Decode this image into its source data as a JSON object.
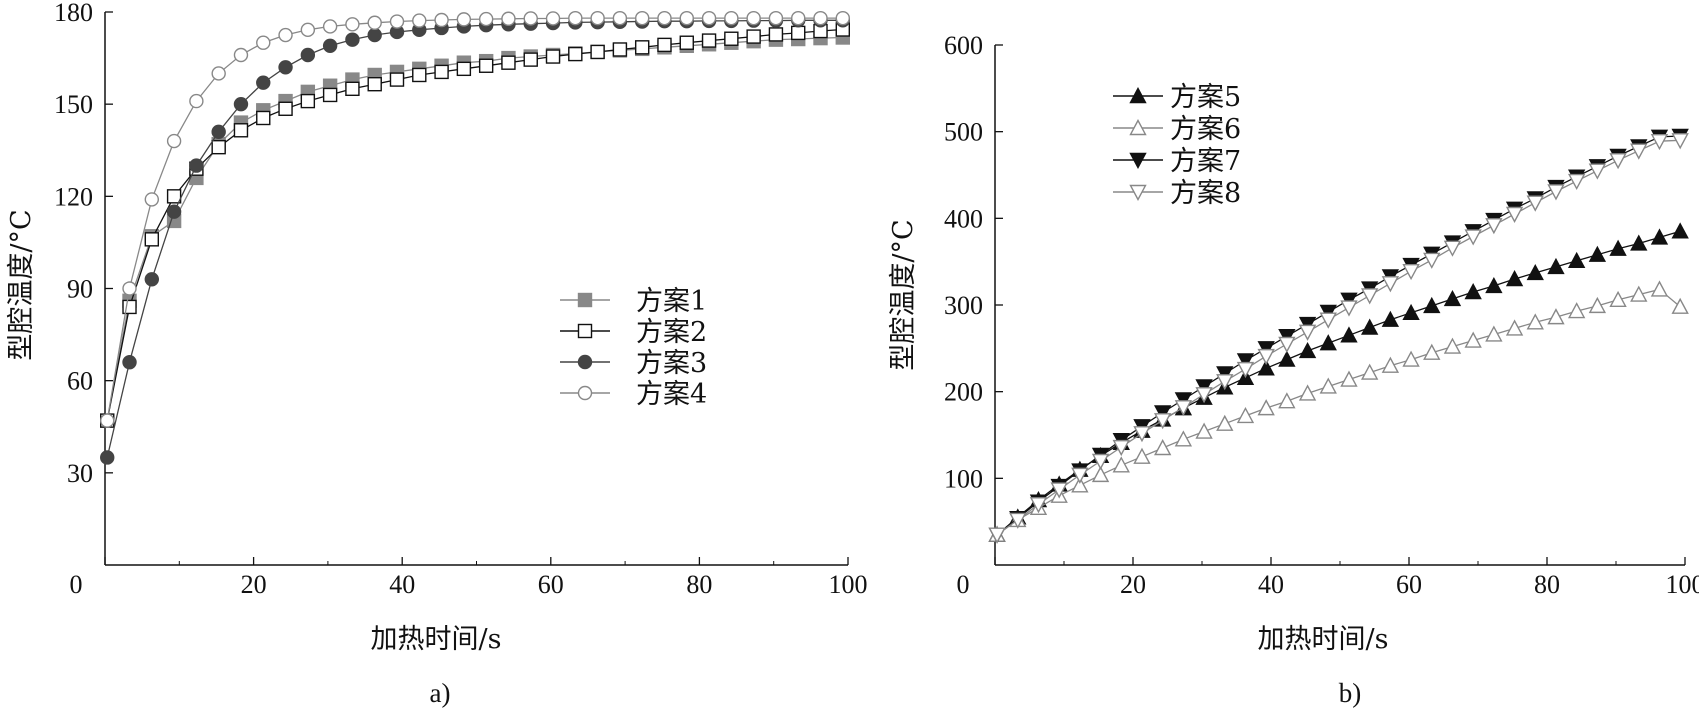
{
  "chart_data": [
    {
      "type": "line",
      "panel_label": "a)",
      "xlabel": "加热时间/s",
      "ylabel": "型腔温度/°C",
      "xlim": [
        0,
        100
      ],
      "ylim": [
        0,
        180
      ],
      "x_ticks": [
        "0",
        "20",
        "40",
        "60",
        "80",
        "100"
      ],
      "y_ticks": [
        "30",
        "60",
        "90",
        "120",
        "150",
        "180"
      ],
      "grid": false,
      "legend_position": "center-right",
      "x": [
        0.3,
        3.3,
        6.3,
        9.3,
        12.3,
        15.3,
        18.3,
        21.3,
        24.3,
        27.3,
        30.3,
        33.3,
        36.3,
        39.3,
        42.3,
        45.3,
        48.3,
        51.3,
        54.3,
        57.3,
        60.3,
        63.3,
        66.3,
        69.3,
        72.3,
        75.3,
        78.3,
        81.3,
        84.3,
        87.3,
        90.3,
        93.3,
        96.3,
        99.3
      ],
      "series": [
        {
          "name": "方案1",
          "marker": "square-filled",
          "color": "#888888",
          "values": [
            47,
            86,
            107,
            112,
            126,
            137,
            144,
            148,
            151,
            154,
            156,
            158,
            159.5,
            160.5,
            161.5,
            162.5,
            163.5,
            164,
            165,
            165.5,
            166,
            166.5,
            167,
            167.5,
            168,
            168.5,
            169,
            169.5,
            170,
            170.5,
            171,
            171.2,
            171.5,
            171.7
          ]
        },
        {
          "name": "方案2",
          "marker": "square-open",
          "color": "#111111",
          "values": [
            47,
            84,
            106,
            120,
            129,
            136,
            141.5,
            145.5,
            148.5,
            151,
            153,
            155,
            156.5,
            158,
            159.5,
            160.5,
            161.5,
            162.5,
            163.5,
            164.5,
            165.5,
            166.3,
            167,
            167.8,
            168.5,
            169.3,
            170,
            170.7,
            171.3,
            172,
            172.7,
            173.2,
            173.8,
            174.3
          ]
        },
        {
          "name": "方案3",
          "marker": "circle-filled",
          "color": "#444444",
          "values": [
            35,
            66,
            93,
            115,
            130,
            141,
            150,
            157,
            162,
            166,
            169,
            171,
            172.5,
            173.5,
            174.2,
            174.8,
            175.3,
            175.7,
            176,
            176.2,
            176.4,
            176.6,
            176.7,
            176.8,
            176.9,
            177,
            177,
            177.1,
            177.1,
            177.2,
            177.2,
            177.3,
            177.3,
            177.3
          ]
        },
        {
          "name": "方案4",
          "marker": "circle-open",
          "color": "#888888",
          "values": [
            47,
            90,
            119,
            138,
            151,
            160,
            166,
            170,
            172.5,
            174.2,
            175.3,
            176,
            176.5,
            176.9,
            177.2,
            177.4,
            177.6,
            177.7,
            177.8,
            177.9,
            177.9,
            178,
            178,
            178,
            178,
            178,
            178,
            178,
            178,
            178,
            178,
            178,
            178,
            178
          ]
        }
      ]
    },
    {
      "type": "line",
      "panel_label": "b)",
      "xlabel": "加热时间/s",
      "ylabel": "型腔温度/°C",
      "xlim": [
        0,
        100
      ],
      "ylim": [
        0,
        600
      ],
      "x_ticks": [
        "0",
        "20",
        "40",
        "60",
        "80",
        "100"
      ],
      "y_ticks": [
        "100",
        "200",
        "300",
        "400",
        "500",
        "600"
      ],
      "grid": false,
      "legend_position": "top-left",
      "x": [
        0.3,
        3.3,
        6.3,
        9.3,
        12.3,
        15.3,
        18.3,
        21.3,
        24.3,
        27.3,
        30.3,
        33.3,
        36.3,
        39.3,
        42.3,
        45.3,
        48.3,
        51.3,
        54.3,
        57.3,
        60.3,
        63.3,
        66.3,
        69.3,
        72.3,
        75.3,
        78.3,
        81.3,
        84.3,
        87.3,
        90.3,
        93.3,
        96.3,
        99.3
      ],
      "series": [
        {
          "name": "方案5",
          "marker": "triangle-up-filled",
          "color": "#111111",
          "values": [
            35,
            55,
            75,
            93,
            110,
            126,
            141,
            155,
            168,
            181,
            193,
            205,
            216,
            227,
            237,
            247,
            256,
            265,
            274,
            283,
            291,
            299,
            307,
            315,
            322,
            330,
            337,
            344,
            351,
            358,
            365,
            371,
            378,
            385
          ]
        },
        {
          "name": "方案6",
          "marker": "triangle-up-open",
          "color": "#888888",
          "values": [
            35,
            52,
            66,
            80,
            92,
            104,
            115,
            125,
            135,
            145,
            154,
            163,
            172,
            181,
            189,
            198,
            206,
            214,
            222,
            230,
            237,
            245,
            252,
            259,
            266,
            273,
            280,
            286,
            293,
            299,
            306,
            312,
            318,
            298
          ]
        },
        {
          "name": "方案7",
          "marker": "triangle-down-filled",
          "color": "#111111",
          "values": [
            35,
            54,
            73,
            91,
            109,
            127,
            144,
            160,
            176,
            191,
            206,
            221,
            236,
            250,
            264,
            278,
            292,
            306,
            319,
            333,
            346,
            359,
            372,
            385,
            398,
            411,
            423,
            436,
            448,
            460,
            472,
            483,
            494,
            495
          ]
        },
        {
          "name": "方案8",
          "marker": "triangle-down-open",
          "color": "#888888",
          "values": [
            35,
            52,
            70,
            87,
            104,
            120,
            136,
            152,
            167,
            182,
            197,
            212,
            226,
            241,
            255,
            269,
            283,
            297,
            311,
            325,
            339,
            352,
            366,
            379,
            392,
            405,
            418,
            431,
            443,
            455,
            467,
            478,
            489,
            490
          ]
        }
      ]
    }
  ]
}
